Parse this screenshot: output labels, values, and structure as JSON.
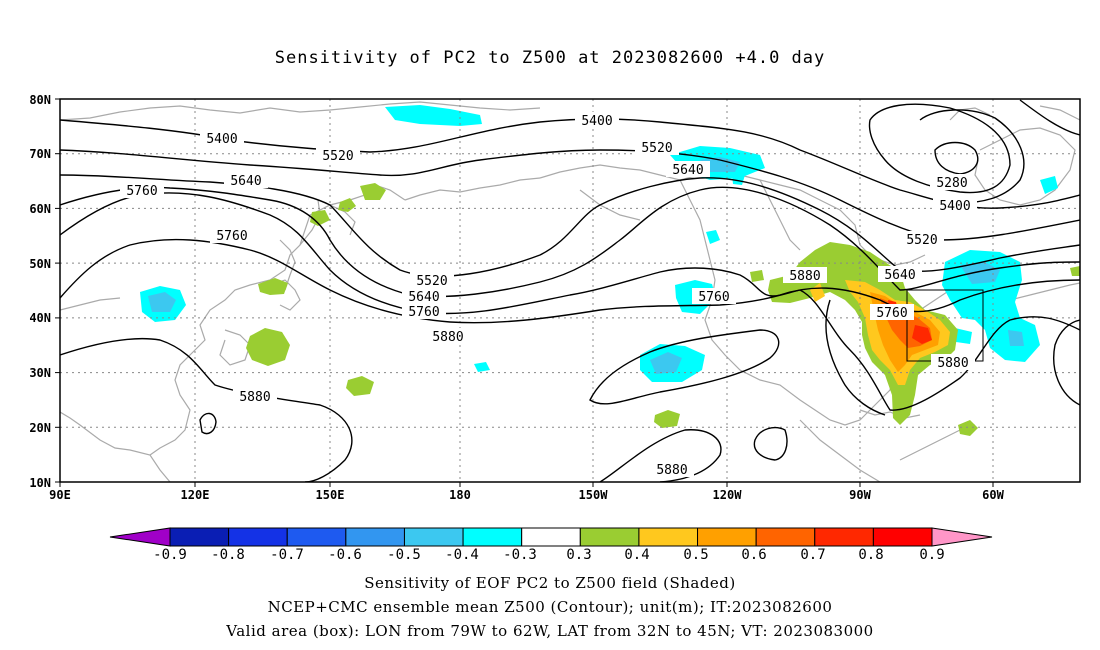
{
  "title": "Sensitivity of PC2 to Z500 at 2023082600 +4.0 day",
  "axes": {
    "lat_labels": [
      "80N",
      "70N",
      "60N",
      "50N",
      "40N",
      "30N",
      "20N",
      "10N"
    ],
    "lon_labels": [
      "90E",
      "120E",
      "150E",
      "180",
      "150W",
      "120W",
      "90W",
      "60W"
    ]
  },
  "contour_labels": [
    {
      "text": "5400"
    },
    {
      "text": "5520"
    },
    {
      "text": "5640"
    },
    {
      "text": "5760"
    },
    {
      "text": "5760"
    },
    {
      "text": "5400"
    },
    {
      "text": "5520"
    },
    {
      "text": "5640"
    },
    {
      "text": "5520"
    },
    {
      "text": "5640"
    },
    {
      "text": "5760"
    },
    {
      "text": "5880"
    },
    {
      "text": "5880"
    },
    {
      "text": "5880"
    },
    {
      "text": "5280"
    },
    {
      "text": "5400"
    },
    {
      "text": "5520"
    },
    {
      "text": "5640"
    },
    {
      "text": "5880"
    },
    {
      "text": "5760"
    },
    {
      "text": "5760"
    },
    {
      "text": "5880"
    }
  ],
  "colorbar": {
    "labels": [
      "-0.9",
      "-0.8",
      "-0.7",
      "-0.6",
      "-0.5",
      "-0.4",
      "-0.3",
      "0.3",
      "0.4",
      "0.5",
      "0.6",
      "0.7",
      "0.8",
      "0.9"
    ],
    "colors": [
      "#a000c8",
      "#0a1eb4",
      "#1432e6",
      "#1e5af0",
      "#3296f0",
      "#3cc8f0",
      "#00ffff",
      "#ffffff",
      "#9acd32",
      "#ffc81e",
      "#ffa000",
      "#ff6400",
      "#ff2800",
      "#ff0000",
      "#ff96c8"
    ]
  },
  "valid_box": {
    "lon_from": "79W",
    "lon_to": "62W",
    "lat_from": "32N",
    "lat_to": "45N"
  },
  "captions": {
    "line1": "Sensitivity of EOF PC2 to Z500 field (Shaded)",
    "line2": "NCEP+CMC ensemble mean Z500 (Contour); unit(m); IT:2023082600",
    "line3": "Valid area (box): LON from 79W to 62W, LAT from 32N to 45N; VT: 2023083000"
  }
}
